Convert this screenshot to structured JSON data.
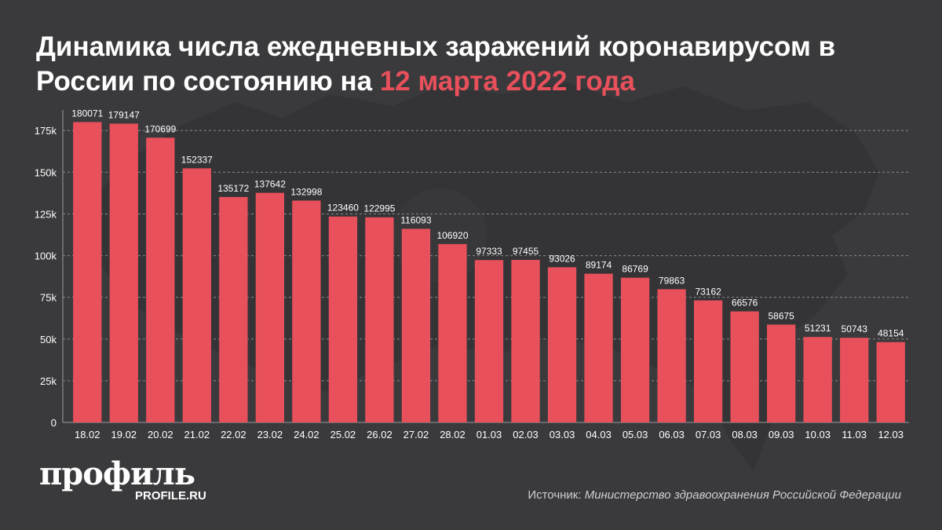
{
  "header": {
    "title_main": "Динамика числа ежедневных заражений коронавирусом в России по состоянию на",
    "title_accent": "12 марта 2022 года"
  },
  "colors": {
    "background": "#3a3a3d",
    "bar": "#e8505b",
    "accent": "#e8505b",
    "text": "#ffffff"
  },
  "chart_data": {
    "type": "bar",
    "categories": [
      "18.02",
      "19.02",
      "20.02",
      "21.02",
      "22.02",
      "23.02",
      "24.02",
      "25.02",
      "26.02",
      "27.02",
      "28.02",
      "01.03",
      "02.03",
      "03.03",
      "04.03",
      "05.03",
      "06.03",
      "07.03",
      "08.03",
      "09.03",
      "10.03",
      "11.03",
      "12.03"
    ],
    "values": [
      180071,
      179147,
      170699,
      152337,
      135172,
      137642,
      132998,
      123460,
      122995,
      116093,
      106920,
      97333,
      97455,
      93026,
      89174,
      86769,
      79863,
      73162,
      66576,
      58675,
      51231,
      50743,
      48154
    ],
    "data_labels": [
      "180071",
      "179147",
      "170699",
      "152337",
      "135172",
      "137642",
      "132998",
      "123460",
      "122995",
      "116093",
      "106920",
      "97333",
      "97455",
      "93026",
      "89174",
      "86769",
      "79863",
      "73162",
      "66576",
      "58675",
      "51231",
      "50743",
      "48154"
    ],
    "yticks": [
      0,
      25000,
      50000,
      75000,
      100000,
      125000,
      150000,
      175000
    ],
    "ytick_labels": [
      "0",
      "25k",
      "50k",
      "75k",
      "100k",
      "125k",
      "150k",
      "175k"
    ],
    "ylim": [
      0,
      185000
    ],
    "grid": true,
    "legend": "none"
  },
  "footer": {
    "logo": "профиль",
    "logo_sub": "PROFILE.RU",
    "source_label": "Источник:",
    "source_text": "Министерство здравоохранения Российской Федерации"
  }
}
